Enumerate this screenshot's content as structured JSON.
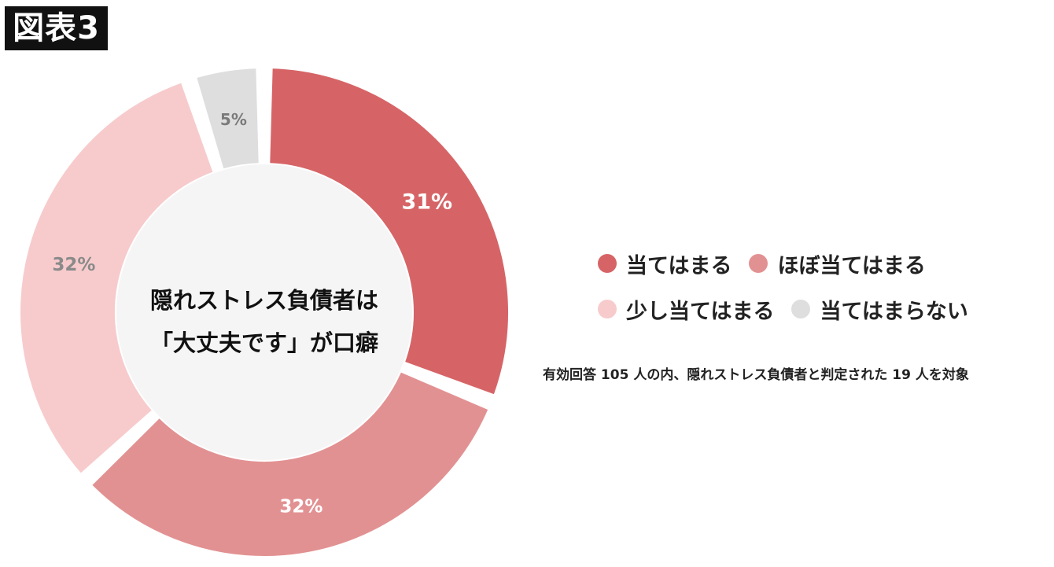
{
  "figure_tag": "図表3",
  "note": "有効回答 105 人の内、隠れストレス負債者と判定された 19 人を対象",
  "chart_data": {
    "type": "pie",
    "donut": true,
    "center_text": [
      "隠れストレス負債者は",
      "「大丈夫です」が口癖"
    ],
    "categories": [
      "当てはまる",
      "ほぼ当てはまる",
      "少し当てはまる",
      "当てはまらない"
    ],
    "values": [
      31,
      32,
      32,
      5
    ],
    "data_labels": [
      "31%",
      "32%",
      "32%",
      "5%"
    ],
    "colors": [
      "#d66466",
      "#e29192",
      "#f7cbcc",
      "#dedede"
    ],
    "label_colors": [
      "#ffffff",
      "#ffffff",
      "#8a8a8a",
      "#7a7a7a"
    ],
    "legend_position": "right"
  }
}
